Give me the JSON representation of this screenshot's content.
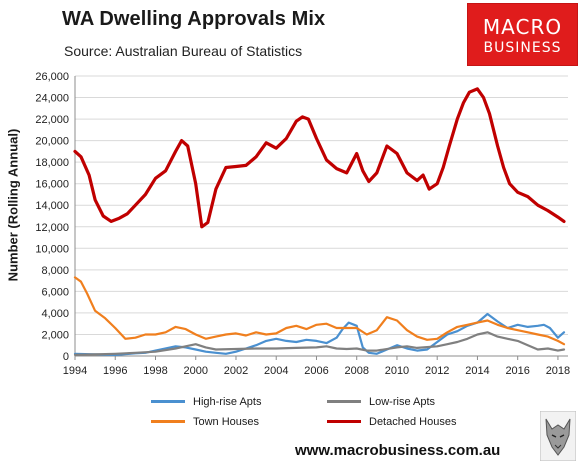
{
  "header": {
    "title": "WA Dwelling Approvals Mix",
    "subtitle": "Source: Australian Bureau of Statistics"
  },
  "logo": {
    "line1": "MACRO",
    "line2": "BUSINESS",
    "color": "#e01c1c"
  },
  "footer": {
    "url": "www.macrobusiness.com.au"
  },
  "chart_data": {
    "type": "line",
    "title": "WA Dwelling Approvals Mix",
    "ylabel": "Number (Rolling Annual)",
    "xlabel": "",
    "ylim": [
      0,
      26000
    ],
    "xlim": [
      1994,
      2018.5
    ],
    "yticks": [
      "0",
      "2,000",
      "4,000",
      "6,000",
      "8,000",
      "10,000",
      "12,000",
      "14,000",
      "16,000",
      "18,000",
      "20,000",
      "22,000",
      "24,000",
      "26,000"
    ],
    "xticks": [
      "1994",
      "1996",
      "1998",
      "2000",
      "2002",
      "2004",
      "2006",
      "2008",
      "2010",
      "2012",
      "2014",
      "2016",
      "2018"
    ],
    "grid": "horizontal",
    "legend": "bottom",
    "series": [
      {
        "name": "High-rise Apts",
        "color": "#4a90d0",
        "x": [
          1994,
          1995,
          1996,
          1997,
          1997.5,
          1998,
          1998.5,
          1999,
          1999.5,
          2000,
          2000.5,
          2001,
          2001.5,
          2002,
          2002.5,
          2003,
          2003.5,
          2004,
          2004.5,
          2005,
          2005.5,
          2006,
          2006.5,
          2007,
          2007.3,
          2007.6,
          2008,
          2008.3,
          2008.6,
          2009,
          2009.5,
          2010,
          2010.5,
          2011,
          2011.5,
          2012,
          2012.5,
          2013,
          2013.5,
          2014,
          2014.5,
          2015,
          2015.5,
          2016,
          2016.5,
          2017,
          2017.3,
          2017.6,
          2018,
          2018.3
        ],
        "y": [
          200,
          150,
          100,
          250,
          300,
          500,
          700,
          900,
          800,
          600,
          400,
          300,
          200,
          400,
          700,
          1000,
          1400,
          1600,
          1400,
          1300,
          1500,
          1400,
          1200,
          1700,
          2500,
          3100,
          2800,
          800,
          300,
          200,
          600,
          1000,
          700,
          500,
          600,
          1300,
          2000,
          2300,
          2800,
          3100,
          3900,
          3200,
          2600,
          2900,
          2700,
          2800,
          2900,
          2600,
          1700,
          2200
        ]
      },
      {
        "name": "Low-rise Apts",
        "color": "#808080",
        "x": [
          1994,
          1995,
          1996,
          1997,
          1998,
          1999,
          1999.5,
          2000,
          2000.5,
          2001,
          2002,
          2003,
          2004,
          2005,
          2006,
          2006.5,
          2007,
          2007.5,
          2008,
          2008.5,
          2009,
          2010,
          2010.5,
          2011,
          2012,
          2012.5,
          2013,
          2013.5,
          2014,
          2014.5,
          2015,
          2015.5,
          2016,
          2016.5,
          2017,
          2017.5,
          2018,
          2018.3
        ],
        "y": [
          100,
          150,
          200,
          300,
          400,
          700,
          900,
          1100,
          800,
          600,
          650,
          700,
          700,
          750,
          800,
          900,
          700,
          650,
          700,
          500,
          500,
          800,
          900,
          750,
          900,
          1100,
          1300,
          1600,
          2000,
          2200,
          1800,
          1600,
          1400,
          1000,
          600,
          700,
          500,
          600
        ]
      },
      {
        "name": "Town Houses",
        "color": "#f07f1e",
        "x": [
          1994,
          1994.3,
          1994.6,
          1995,
          1995.5,
          1996,
          1996.5,
          1997,
          1997.5,
          1998,
          1998.5,
          1999,
          1999.5,
          2000,
          2000.5,
          2001,
          2001.5,
          2002,
          2002.5,
          2003,
          2003.5,
          2004,
          2004.5,
          2005,
          2005.5,
          2006,
          2006.5,
          2007,
          2007.5,
          2008,
          2008.5,
          2009,
          2009.5,
          2010,
          2010.5,
          2011,
          2011.5,
          2012,
          2012.5,
          2013,
          2013.5,
          2014,
          2014.5,
          2015,
          2015.5,
          2016,
          2016.5,
          2017,
          2017.5,
          2018,
          2018.3
        ],
        "y": [
          7300,
          6900,
          5800,
          4200,
          3500,
          2600,
          1600,
          1700,
          2000,
          2000,
          2200,
          2700,
          2500,
          2000,
          1600,
          1800,
          2000,
          2100,
          1900,
          2200,
          2000,
          2100,
          2600,
          2800,
          2500,
          2900,
          3000,
          2600,
          2600,
          2600,
          2000,
          2400,
          3600,
          3300,
          2400,
          1800,
          1500,
          1600,
          2200,
          2700,
          2900,
          3100,
          3300,
          2900,
          2600,
          2400,
          2200,
          2000,
          1800,
          1400,
          1100
        ]
      },
      {
        "name": "Detached Houses",
        "color": "#c00000",
        "x": [
          1994,
          1994.3,
          1994.7,
          1995,
          1995.4,
          1995.8,
          1996.2,
          1996.6,
          1997,
          1997.5,
          1998,
          1998.5,
          1999,
          1999.3,
          1999.6,
          2000,
          2000.3,
          2000.6,
          2001,
          2001.5,
          2002,
          2002.5,
          2003,
          2003.5,
          2004,
          2004.5,
          2005,
          2005.3,
          2005.6,
          2006,
          2006.5,
          2007,
          2007.5,
          2008,
          2008.3,
          2008.6,
          2009,
          2009.5,
          2010,
          2010.5,
          2011,
          2011.3,
          2011.6,
          2012,
          2012.3,
          2012.6,
          2013,
          2013.3,
          2013.6,
          2014,
          2014.3,
          2014.6,
          2015,
          2015.3,
          2015.6,
          2016,
          2016.5,
          2017,
          2017.5,
          2018,
          2018.3
        ],
        "y": [
          19000,
          18500,
          16800,
          14500,
          13000,
          12500,
          12800,
          13200,
          14000,
          15000,
          16500,
          17200,
          19000,
          20000,
          19500,
          16000,
          12000,
          12400,
          15500,
          17500,
          17600,
          17700,
          18500,
          19800,
          19300,
          20200,
          21800,
          22200,
          22000,
          20200,
          18200,
          17400,
          17000,
          18800,
          17200,
          16200,
          17000,
          19500,
          18800,
          17000,
          16300,
          16800,
          15500,
          16000,
          17500,
          19500,
          22000,
          23500,
          24500,
          24800,
          24000,
          22500,
          19500,
          17500,
          16000,
          15200,
          14800,
          14000,
          13500,
          12900,
          12500
        ]
      }
    ]
  }
}
